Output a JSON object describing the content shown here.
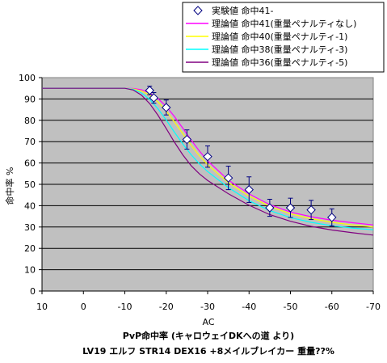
{
  "chart_data": {
    "type": "line",
    "title_line1": "PvP命中率 (キャロウェイDKへの道 より)",
    "title_line2": "LV19 エルフ STR14 DEX16 +8メイルブレイカー 重量??%",
    "xlabel": "AC",
    "ylabel": "命中率 %",
    "xlim": [
      10,
      -70
    ],
    "ylim": [
      0,
      100
    ],
    "xticks": [
      10,
      0,
      -10,
      -20,
      -30,
      -40,
      -50,
      -60,
      -70
    ],
    "yticks": [
      0,
      10,
      20,
      30,
      40,
      50,
      60,
      70,
      80,
      90,
      100
    ],
    "grid": true,
    "legend_position": "top-right",
    "observed": {
      "name": "実験値 命中41-",
      "color": "#000080",
      "points": [
        {
          "x": -16,
          "y": 94,
          "err": 2
        },
        {
          "x": -17,
          "y": 90.5,
          "err": 2.5
        },
        {
          "x": -20,
          "y": 86,
          "err": 3.5
        },
        {
          "x": -25,
          "y": 71,
          "err": 4.5
        },
        {
          "x": -30,
          "y": 63,
          "err": 5
        },
        {
          "x": -35,
          "y": 53,
          "err": 5.5
        },
        {
          "x": -40,
          "y": 47.5,
          "err": 6
        },
        {
          "x": -45,
          "y": 39,
          "err": 4
        },
        {
          "x": -50,
          "y": 39,
          "err": 4.5
        },
        {
          "x": -55,
          "y": 38,
          "err": 4.5
        },
        {
          "x": -60,
          "y": 34.5,
          "err": 4
        }
      ]
    },
    "series": [
      {
        "name": "理論値 命中41(重量ペナルティなし)",
        "color": "#ff00ff",
        "x": [
          10,
          0,
          -10,
          -12,
          -14,
          -16,
          -18,
          -20,
          -22,
          -24,
          -26,
          -28,
          -30,
          -35,
          -40,
          -45,
          -50,
          -55,
          -60,
          -65,
          -70
        ],
        "y": [
          95,
          95,
          95,
          94.9,
          94.3,
          92.8,
          90.2,
          86.5,
          81.7,
          76.3,
          70.8,
          65.6,
          61,
          52,
          45.5,
          40.5,
          37,
          34.8,
          33.2,
          32,
          31
        ]
      },
      {
        "name": "理論値 命中40(重量ペナルティ-1)",
        "color": "#ffff00",
        "x": [
          10,
          0,
          -10,
          -12,
          -14,
          -16,
          -18,
          -20,
          -22,
          -24,
          -26,
          -28,
          -30,
          -35,
          -40,
          -45,
          -50,
          -55,
          -60,
          -65,
          -70
        ],
        "y": [
          95,
          95,
          95,
          94.7,
          93.8,
          91.8,
          88.6,
          84.3,
          79.2,
          73.7,
          68.3,
          63.4,
          59.2,
          50.8,
          44.5,
          39.7,
          36.2,
          33.9,
          32.2,
          31,
          30
        ]
      },
      {
        "name": "理論値 命中38(重量ペナルティ-3)",
        "color": "#00ffff",
        "x": [
          10,
          0,
          -10,
          -12,
          -14,
          -16,
          -18,
          -20,
          -22,
          -24,
          -26,
          -28,
          -30,
          -35,
          -40,
          -45,
          -50,
          -55,
          -60,
          -65,
          -70
        ],
        "y": [
          95,
          95,
          95,
          94.5,
          92.8,
          89.8,
          85.4,
          80.1,
          74.4,
          68.9,
          63.9,
          59.6,
          56,
          48.5,
          42.3,
          37.7,
          34.4,
          32.2,
          30.6,
          29.5,
          28.7
        ]
      },
      {
        "name": "理論値 命中36(重量ペナルティ-5)",
        "color": "#800080",
        "x": [
          10,
          0,
          -10,
          -12,
          -14,
          -16,
          -18,
          -20,
          -22,
          -24,
          -26,
          -28,
          -30,
          -35,
          -40,
          -45,
          -50,
          -55,
          -60,
          -65,
          -70
        ],
        "y": [
          95,
          95,
          95,
          94.2,
          91.8,
          87.8,
          82.4,
          76.1,
          69.7,
          63.8,
          58.8,
          54.9,
          51.8,
          45.6,
          40.2,
          35.8,
          32.7,
          30.3,
          28.6,
          27.3,
          26.2
        ]
      }
    ]
  }
}
